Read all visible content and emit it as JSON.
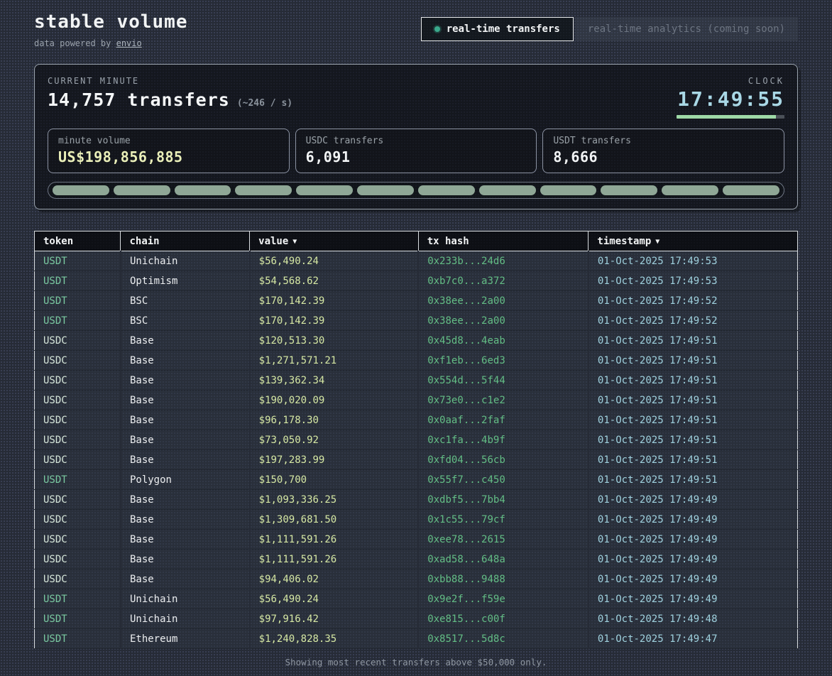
{
  "header": {
    "title": "stable volume",
    "powered_by_prefix": "data powered by ",
    "powered_by_link": "envio",
    "tabs": [
      {
        "label": "real-time transfers",
        "active": true
      },
      {
        "label": "real-time analytics (coming soon)",
        "active": false
      }
    ]
  },
  "stats": {
    "section_label": "CURRENT MINUTE",
    "transfers_count": "14,757 transfers",
    "rate": "(~246 / s)",
    "clock_label": "CLOCK",
    "clock_time": "17:49:55",
    "clock_progress_pct": 92,
    "boxes": [
      {
        "label": "minute volume",
        "value": "US$198,856,885"
      },
      {
        "label": "USDC transfers",
        "value": "6,091"
      },
      {
        "label": "USDT transfers",
        "value": "8,666"
      }
    ],
    "segments_count": 12
  },
  "table": {
    "columns": [
      {
        "label": "token",
        "sortable": false
      },
      {
        "label": "chain",
        "sortable": false
      },
      {
        "label": "value",
        "sortable": true
      },
      {
        "label": "tx hash",
        "sortable": false
      },
      {
        "label": "timestamp",
        "sortable": true
      }
    ],
    "sort_indicator": "▼",
    "rows": [
      {
        "token": "USDT",
        "chain": "Unichain",
        "value": "$56,490.24",
        "tx_hash": "0x233b...24d6",
        "timestamp": "01-Oct-2025 17:49:53"
      },
      {
        "token": "USDT",
        "chain": "Optimism",
        "value": "$54,568.62",
        "tx_hash": "0xb7c0...a372",
        "timestamp": "01-Oct-2025 17:49:53"
      },
      {
        "token": "USDT",
        "chain": "BSC",
        "value": "$170,142.39",
        "tx_hash": "0x38ee...2a00",
        "timestamp": "01-Oct-2025 17:49:52"
      },
      {
        "token": "USDT",
        "chain": "BSC",
        "value": "$170,142.39",
        "tx_hash": "0x38ee...2a00",
        "timestamp": "01-Oct-2025 17:49:52"
      },
      {
        "token": "USDC",
        "chain": "Base",
        "value": "$120,513.30",
        "tx_hash": "0x45d8...4eab",
        "timestamp": "01-Oct-2025 17:49:51"
      },
      {
        "token": "USDC",
        "chain": "Base",
        "value": "$1,271,571.21",
        "tx_hash": "0xf1eb...6ed3",
        "timestamp": "01-Oct-2025 17:49:51"
      },
      {
        "token": "USDC",
        "chain": "Base",
        "value": "$139,362.34",
        "tx_hash": "0x554d...5f44",
        "timestamp": "01-Oct-2025 17:49:51"
      },
      {
        "token": "USDC",
        "chain": "Base",
        "value": "$190,020.09",
        "tx_hash": "0x73e0...c1e2",
        "timestamp": "01-Oct-2025 17:49:51"
      },
      {
        "token": "USDC",
        "chain": "Base",
        "value": "$96,178.30",
        "tx_hash": "0x0aaf...2faf",
        "timestamp": "01-Oct-2025 17:49:51"
      },
      {
        "token": "USDC",
        "chain": "Base",
        "value": "$73,050.92",
        "tx_hash": "0xc1fa...4b9f",
        "timestamp": "01-Oct-2025 17:49:51"
      },
      {
        "token": "USDC",
        "chain": "Base",
        "value": "$197,283.99",
        "tx_hash": "0xfd04...56cb",
        "timestamp": "01-Oct-2025 17:49:51"
      },
      {
        "token": "USDT",
        "chain": "Polygon",
        "value": "$150,700",
        "tx_hash": "0x55f7...c450",
        "timestamp": "01-Oct-2025 17:49:51"
      },
      {
        "token": "USDC",
        "chain": "Base",
        "value": "$1,093,336.25",
        "tx_hash": "0xdbf5...7bb4",
        "timestamp": "01-Oct-2025 17:49:49"
      },
      {
        "token": "USDC",
        "chain": "Base",
        "value": "$1,309,681.50",
        "tx_hash": "0x1c55...79cf",
        "timestamp": "01-Oct-2025 17:49:49"
      },
      {
        "token": "USDC",
        "chain": "Base",
        "value": "$1,111,591.26",
        "tx_hash": "0xee78...2615",
        "timestamp": "01-Oct-2025 17:49:49"
      },
      {
        "token": "USDC",
        "chain": "Base",
        "value": "$1,111,591.26",
        "tx_hash": "0xad58...648a",
        "timestamp": "01-Oct-2025 17:49:49"
      },
      {
        "token": "USDC",
        "chain": "Base",
        "value": "$94,406.02",
        "tx_hash": "0xbb88...9488",
        "timestamp": "01-Oct-2025 17:49:49"
      },
      {
        "token": "USDT",
        "chain": "Unichain",
        "value": "$56,490.24",
        "tx_hash": "0x9e2f...f59e",
        "timestamp": "01-Oct-2025 17:49:49"
      },
      {
        "token": "USDT",
        "chain": "Unichain",
        "value": "$97,916.42",
        "tx_hash": "0xe815...c00f",
        "timestamp": "01-Oct-2025 17:49:48"
      },
      {
        "token": "USDT",
        "chain": "Ethereum",
        "value": "$1,240,828.35",
        "tx_hash": "0x8517...5d8c",
        "timestamp": "01-Oct-2025 17:49:47"
      }
    ]
  },
  "footer": {
    "note": "Showing most recent transfers above $50,000 only."
  },
  "colors": {
    "page_bg": "#262b36",
    "panel_border": "#9aa3ad",
    "clock": "#a9d8e6",
    "progress_green": "#9ed9a6",
    "segment_pill": "#8fa796",
    "minute_volume_value": "#eaefb9",
    "usdt_token": "#7ac9a1",
    "usdc_token": "#d6e6da",
    "value_text": "#d6e8a4",
    "tx_hash": "#63bd85",
    "timestamp_text": "#9fd1de",
    "active_tab_dot": "#3aa98c"
  }
}
